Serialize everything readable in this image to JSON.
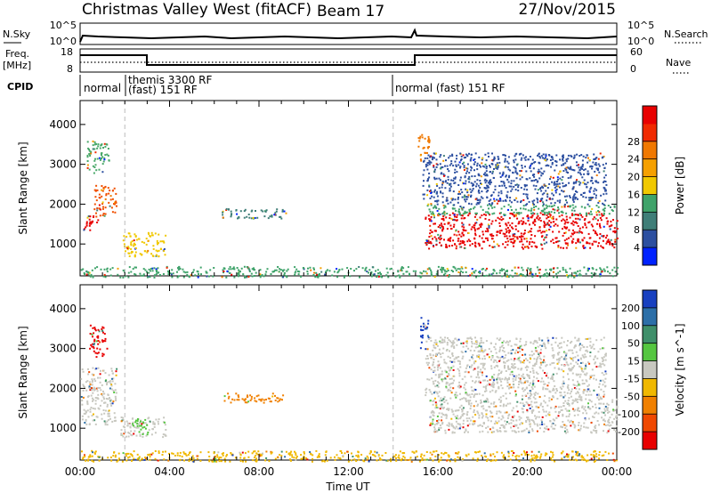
{
  "header": {
    "title": "Christmas Valley West (fitACF)",
    "beam": "Beam 17",
    "date": "27/Nov/2015"
  },
  "strips": {
    "nsky_label": "N.Sky",
    "nsearch_label": "N.Search",
    "nsky_ticks": [
      "10^5",
      "10^0"
    ],
    "nsearch_ticks": [
      "10^5",
      "10^0"
    ],
    "freq_label_1": "Freq.",
    "freq_label_2": "[MHz]",
    "freq_ticks": [
      "18",
      "8"
    ],
    "nave_label": "Nave",
    "nave_ticks": [
      "60",
      "0"
    ],
    "cpid_label": "CPID",
    "cpid_segments": [
      {
        "lines": [
          "normal"
        ]
      },
      {
        "lines": [
          "themis 3300 RF",
          "(fast) 151 RF"
        ]
      },
      {
        "lines": [
          "normal (fast) 151 RF"
        ]
      }
    ]
  },
  "chart_data": [
    {
      "type": "heatmap",
      "name": "power",
      "ylabel": "Slant Range [km]",
      "y_ticks": [
        1000,
        2000,
        3000,
        4000
      ],
      "ylim": [
        200,
        4600
      ],
      "xlim": [
        0,
        24
      ],
      "colorbar": {
        "label": "Power [dB]",
        "ticks": [
          "4",
          "8",
          "12",
          "16",
          "20",
          "24",
          "28"
        ],
        "colors": [
          "#0022ff",
          "#2c4fa0",
          "#3f7e78",
          "#3fa36a",
          "#f0c800",
          "#f5a000",
          "#f07800",
          "#f02a00",
          "#e80000"
        ]
      },
      "regions": [
        {
          "t0": 0.1,
          "t1": 0.8,
          "r0": 1350,
          "r1": 1750,
          "color": "#e80000"
        },
        {
          "t0": 0.6,
          "t1": 1.6,
          "r0": 1700,
          "r1": 2500,
          "color": "#f05000"
        },
        {
          "t0": 0.3,
          "t1": 1.3,
          "r0": 2800,
          "r1": 3600,
          "color": "#4aa86a"
        },
        {
          "t0": 1.9,
          "t1": 3.8,
          "r0": 700,
          "r1": 1300,
          "color": "#f0c800"
        },
        {
          "t0": 6.3,
          "t1": 9.2,
          "r0": 1650,
          "r1": 1900,
          "color": "#3f7e78"
        },
        {
          "t0": 15.1,
          "t1": 15.6,
          "r0": 3100,
          "r1": 3800,
          "color": "#f07800"
        },
        {
          "t0": 15.4,
          "t1": 24,
          "r0": 900,
          "r1": 1800,
          "color": "#e80000"
        },
        {
          "t0": 15.5,
          "t1": 24,
          "r0": 1750,
          "r1": 2000,
          "color": "#3fa36a"
        },
        {
          "t0": 15.3,
          "t1": 23.5,
          "r0": 2000,
          "r1": 3300,
          "color": "#2c4fa0"
        },
        {
          "t0": 0,
          "t1": 24,
          "r0": 180,
          "r1": 450,
          "color": "#3fa36a"
        }
      ]
    },
    {
      "type": "heatmap",
      "name": "velocity",
      "xlabel": "Time UT",
      "ylabel": "Slant Range [km]",
      "y_ticks": [
        1000,
        2000,
        3000,
        4000
      ],
      "ylim": [
        200,
        4600
      ],
      "xlim": [
        0,
        24
      ],
      "x_ticks": [
        "00:00",
        "04:00",
        "08:00",
        "12:00",
        "16:00",
        "20:00",
        "00:00"
      ],
      "colorbar": {
        "label": "Velocity [m s^-1]",
        "ticks": [
          "200",
          "100",
          "50",
          "15",
          "-15",
          "-50",
          "-100",
          "-200"
        ],
        "colors": [
          "#1840c0",
          "#2c6fa8",
          "#3f8f6a",
          "#55c640",
          "#c8c8c0",
          "#f0b800",
          "#f08000",
          "#f04800",
          "#e80000"
        ]
      },
      "regions": [
        {
          "t0": 0,
          "t1": 1.6,
          "r0": 1100,
          "r1": 2550,
          "color": "#c8c8c0"
        },
        {
          "t0": 0.4,
          "t1": 1.2,
          "r0": 2800,
          "r1": 3600,
          "color": "#e80000"
        },
        {
          "t0": 1.8,
          "t1": 3.8,
          "r0": 800,
          "r1": 1300,
          "color": "#c8c8c0"
        },
        {
          "t0": 2.3,
          "t1": 3.1,
          "r0": 850,
          "r1": 1250,
          "color": "#55c640"
        },
        {
          "t0": 6.3,
          "t1": 9.2,
          "r0": 1650,
          "r1": 1900,
          "color": "#f08000"
        },
        {
          "t0": 15.2,
          "t1": 15.6,
          "r0": 3000,
          "r1": 3800,
          "color": "#1840c0"
        },
        {
          "t0": 15.6,
          "t1": 24,
          "r0": 900,
          "r1": 1800,
          "color": "#c8c8c0"
        },
        {
          "t0": 15.4,
          "t1": 23.5,
          "r0": 1800,
          "r1": 3300,
          "color": "#c8c8c0"
        },
        {
          "t0": 0,
          "t1": 24,
          "r0": 180,
          "r1": 450,
          "color": "#f0b800"
        }
      ]
    }
  ]
}
